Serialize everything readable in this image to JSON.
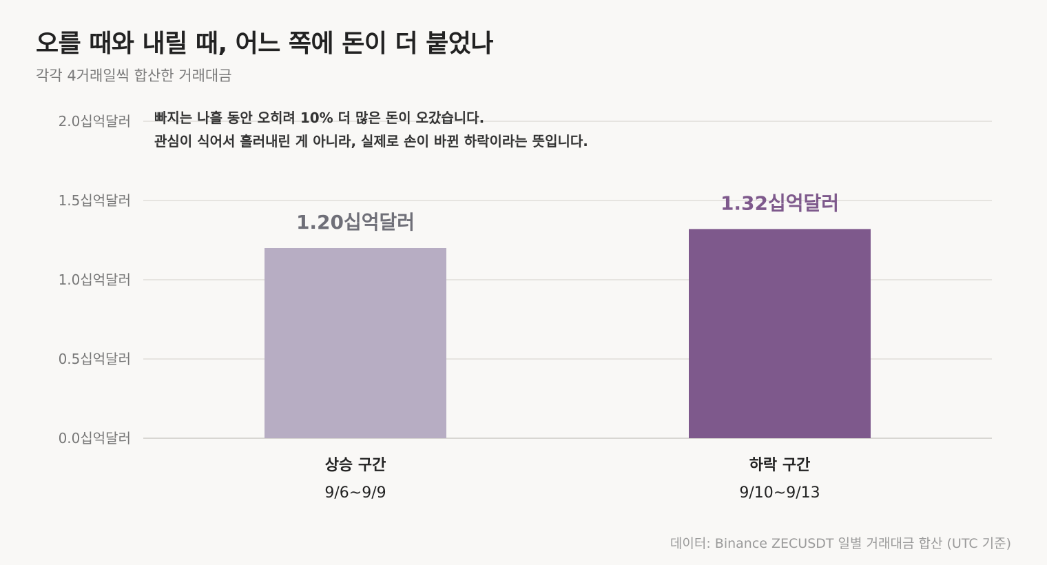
{
  "header": {
    "title": "오를 때와 내릴 때, 어느 쪽에 돈이 더 붙었나",
    "subtitle": "각각 4거래일씩 합산한 거래대금"
  },
  "annotation": {
    "line1": "빠지는 나흘 동안 오히려 10% 더 많은 돈이 오갔습니다.",
    "line2": "관심이 식어서 흘러내린 게 아니라, 실제로 손이 바뀐 하락이라는 뜻입니다."
  },
  "footer": {
    "source": "데이터: Binance ZECUSDT 일별 거래대금 합산 (UTC 기준)"
  },
  "chart_data": {
    "type": "bar",
    "categories": [
      "상승 구간",
      "하락 구간"
    ],
    "category_ranges": [
      "9/6~9/9",
      "9/10~9/13"
    ],
    "values": [
      1.2,
      1.32
    ],
    "value_labels": [
      "1.20십억달러",
      "1.32십억달러"
    ],
    "unit": "십억달러",
    "ylim": [
      0,
      2.0
    ],
    "yticks": [
      0.0,
      0.5,
      1.0,
      1.5,
      2.0
    ],
    "ytick_labels": [
      "0.0십억달러",
      "0.5십억달러",
      "1.0십억달러",
      "1.5십억달러",
      "2.0십억달러"
    ],
    "grid": true,
    "colors": [
      "#b7adc3",
      "#7e598c"
    ],
    "label_colors": [
      "#6f6f78",
      "#7e598c"
    ]
  }
}
